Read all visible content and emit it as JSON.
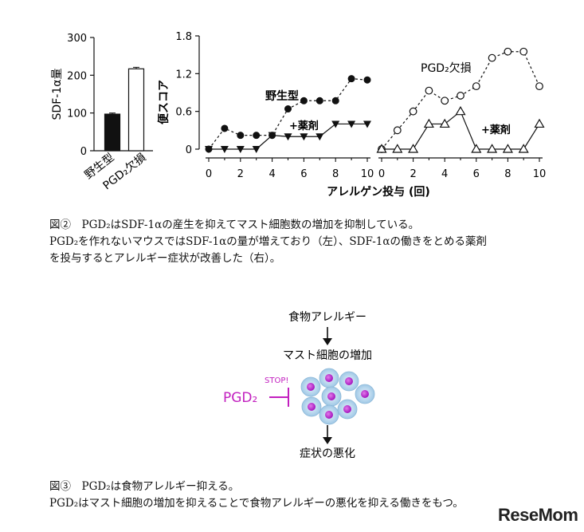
{
  "chart_data": [
    {
      "type": "bar",
      "ylabel": "SDF-1α量",
      "categories": [
        "野生型",
        "PGD₂欠損"
      ],
      "values": [
        97,
        217
      ],
      "errors": [
        3,
        4
      ],
      "ylim": [
        0,
        300
      ],
      "yticks": [
        "0",
        "100",
        "200",
        "300"
      ],
      "fills": [
        "#111111",
        "#ffffff"
      ]
    },
    {
      "type": "line",
      "ylabel": "便スコア",
      "xlabel": "アレルゲン投与 (回)",
      "ylim": [
        0,
        1.8
      ],
      "yticks": [
        "0",
        "0.6",
        "1.2",
        "1.8"
      ],
      "xticks": [
        "0",
        "2",
        "4",
        "6",
        "8",
        "10"
      ],
      "panels": [
        {
          "series": [
            {
              "name": "野生型",
              "marker": "filled-circle",
              "line": "dashed",
              "x": [
                0,
                1,
                2,
                3,
                4,
                5,
                6,
                7,
                8,
                9,
                10
              ],
              "y": [
                0,
                0.33,
                0.22,
                0.22,
                0.22,
                0.64,
                0.77,
                0.77,
                0.77,
                1.12,
                1.1
              ]
            },
            {
              "name": "+薬剤",
              "marker": "filled-triangle-down",
              "line": "solid",
              "x": [
                0,
                1,
                2,
                3,
                4,
                5,
                6,
                7,
                8,
                9,
                10
              ],
              "y": [
                0,
                0,
                0,
                0,
                0.22,
                0.2,
                0.2,
                0.2,
                0.4,
                0.4,
                0.4
              ]
            }
          ]
        },
        {
          "title": "PGD₂欠損",
          "series": [
            {
              "name": "PGD₂欠損",
              "marker": "open-circle",
              "line": "dashed",
              "x": [
                0,
                1,
                2,
                3,
                4,
                5,
                6,
                7,
                8,
                9,
                10
              ],
              "y": [
                0,
                0.3,
                0.6,
                0.93,
                0.77,
                0.85,
                1.0,
                1.45,
                1.55,
                1.55,
                1.0
              ]
            },
            {
              "name": "+薬剤",
              "marker": "open-triangle-up",
              "line": "solid",
              "x": [
                0,
                1,
                2,
                3,
                4,
                5,
                6,
                7,
                8,
                9,
                10
              ],
              "y": [
                0,
                0,
                0,
                0.4,
                0.4,
                0.6,
                0,
                0,
                0,
                0,
                0.4
              ]
            }
          ]
        }
      ]
    }
  ],
  "captions": {
    "fig2": [
      "図②　PGD₂はSDF-1αの産生を抑えてマスト細胞数の増加を抑制している。",
      "PGD₂を作れないマウスではSDF-1αの量が増えており（左）、SDF-1αの働きをとめる薬剤",
      "を投与するとアレルギー症状が改善した（右）。"
    ],
    "fig3": [
      "図③　PGD₂は食物アレルギー抑える。",
      "PGD₂はマスト細胞の増加を抑えることで食物アレルギーの悪化を抑える働きをもつ。"
    ]
  },
  "diagram": {
    "step1": "食物アレルギー",
    "step2": "マスト細胞の増加",
    "step3": "症状の悪化",
    "inhibitor": "PGD₂",
    "stop": "STOP!",
    "inhibitor_color": "#c21fbf",
    "cell_color": "#b9d9ee",
    "nucleus_color": "#c23ad6"
  },
  "watermark": "ReseMom"
}
